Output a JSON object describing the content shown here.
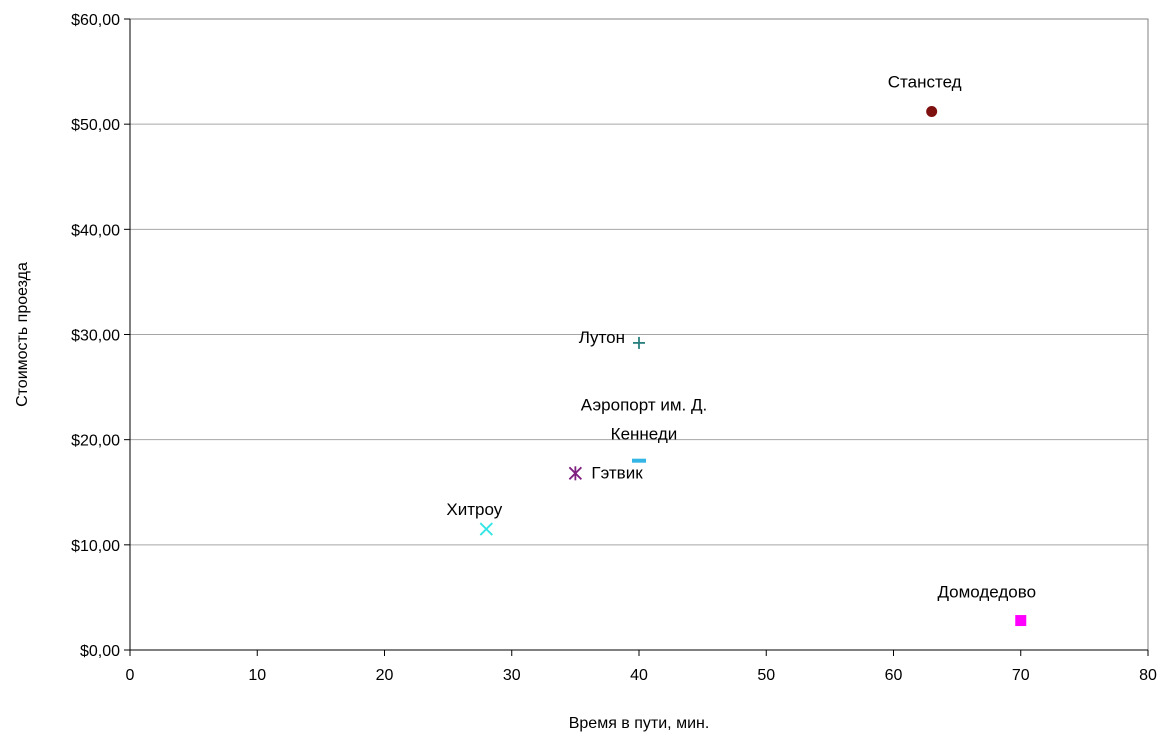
{
  "chart_data": {
    "type": "scatter",
    "title": "",
    "xlabel": "Время в пути, мин.",
    "ylabel": "Стоимость проезда",
    "xlim": [
      0,
      80
    ],
    "ylim": [
      0,
      60
    ],
    "x_ticks": [
      0,
      10,
      20,
      30,
      40,
      50,
      60,
      70,
      80
    ],
    "y_ticks": [
      0,
      10,
      20,
      30,
      40,
      50,
      60
    ],
    "y_tick_format": "currency_comma",
    "grid": {
      "horizontal": true,
      "vertical": false
    },
    "legend": "none",
    "points": [
      {
        "label": "Станстед",
        "x": 63,
        "y": 51.2,
        "marker": "circle",
        "color": "#7f1010"
      },
      {
        "label": "Лутон",
        "x": 40,
        "y": 29.2,
        "marker": "plus",
        "color": "#2a7f7f"
      },
      {
        "label": "Аэропорт им. Д. Кеннеди",
        "label_lines": [
          "Аэропорт им. Д.",
          "Кеннеди"
        ],
        "x": 40,
        "y": 18,
        "marker": "dash",
        "color": "#33b5e5"
      },
      {
        "label": "Гэтвик",
        "x": 35,
        "y": 16.8,
        "marker": "asterisk",
        "color": "#7f1f7f"
      },
      {
        "label": "Хитроу",
        "x": 28,
        "y": 11.5,
        "marker": "x",
        "color": "#33e5e5"
      },
      {
        "label": "Домодедово",
        "x": 70,
        "y": 2.8,
        "marker": "square",
        "color": "#ff00ff"
      }
    ]
  }
}
